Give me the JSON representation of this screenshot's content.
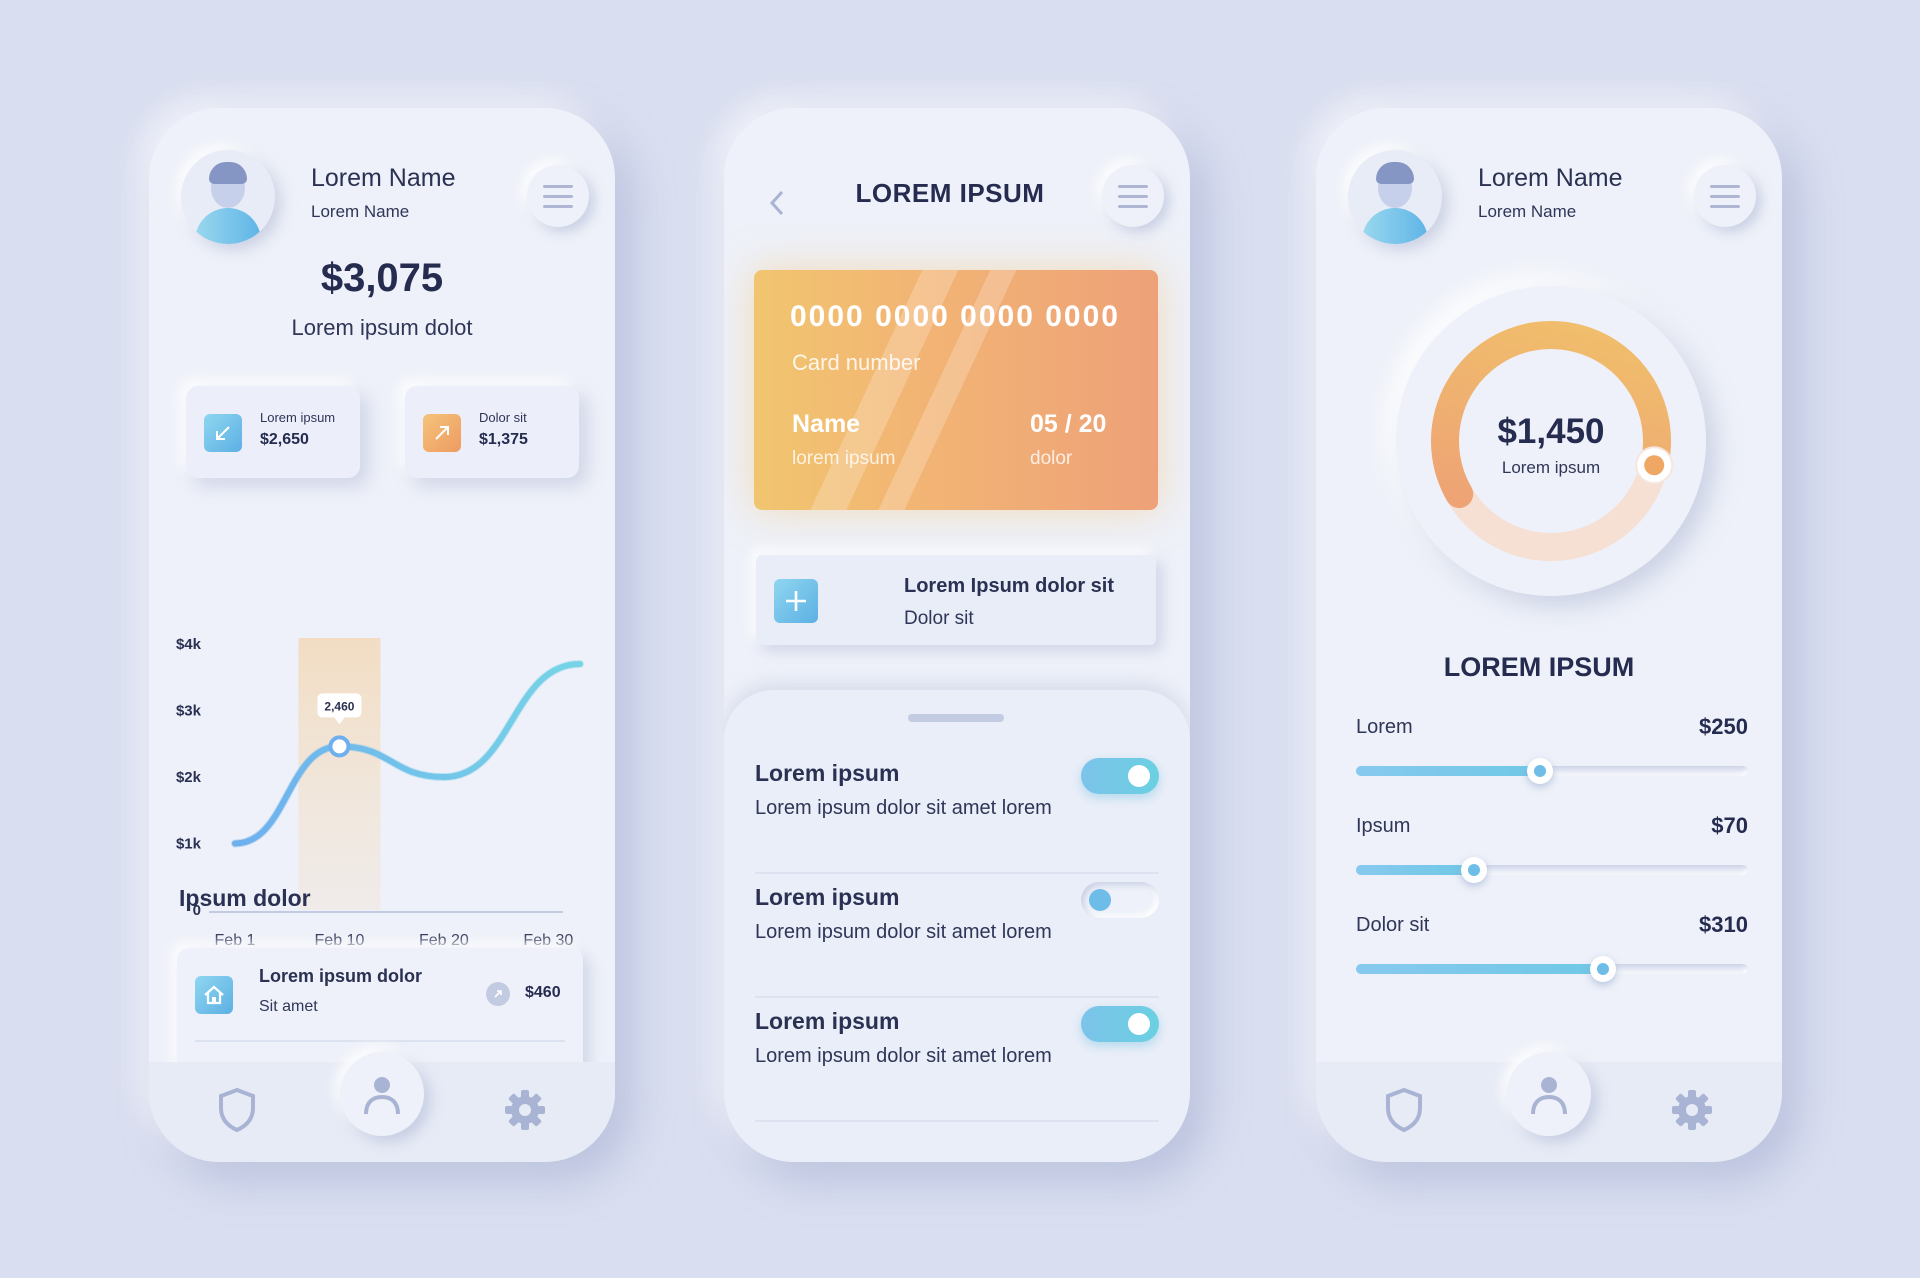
{
  "phone1": {
    "profile": {
      "name": "Lorem Name",
      "subname": "Lorem Name"
    },
    "balance": {
      "amount": "$3,075",
      "caption": "Lorem ipsum dolot"
    },
    "stats": [
      {
        "label": "Lorem ipsum",
        "value": "$2,650",
        "icon": "arrow-down-left-icon",
        "color": "#5fb8e6"
      },
      {
        "label": "Dolor sit",
        "value": "$1,375",
        "icon": "arrow-up-right-icon",
        "color": "#f1a85f"
      }
    ],
    "chart_data": {
      "type": "line",
      "x": [
        "Feb 1",
        "Feb 10",
        "Feb 20",
        "Feb 30"
      ],
      "y_ticks": [
        "0",
        "$1k",
        "$2k",
        "$3k",
        "$4k"
      ],
      "ylim": [
        0,
        4000
      ],
      "series": [
        {
          "points": [
            [
              0,
              1000
            ],
            [
              1,
              2460
            ],
            [
              2,
              2000
            ],
            [
              3,
              3700
            ]
          ]
        }
      ],
      "highlight": {
        "x_index": 1,
        "label": "2,460",
        "value": 2460
      }
    },
    "section_title": "Ipsum dolor",
    "transaction": {
      "title": "Lorem ipsum dolor",
      "sub": "Sit amet",
      "amount": "$460",
      "icon": "home-icon"
    },
    "tabbar": [
      "shield-icon",
      "user-icon",
      "gear-icon"
    ]
  },
  "phone2": {
    "title": "LOREM IPSUM",
    "card": {
      "number": "0000 0000 0000 0000",
      "number_label": "Card number",
      "name": "Name",
      "name_label": "lorem ipsum",
      "expiry": "05 / 20",
      "expiry_label": "dolor"
    },
    "add_item": {
      "title": "Lorem Ipsum dolor sit",
      "sub": "Dolor sit",
      "icon": "plus-icon"
    },
    "settings": [
      {
        "title": "Lorem ipsum",
        "sub": "Lorem ipsum dolor sit amet lorem",
        "enabled": true
      },
      {
        "title": "Lorem ipsum",
        "sub": "Lorem ipsum dolor sit amet lorem",
        "enabled": false
      },
      {
        "title": "Lorem ipsum",
        "sub": "Lorem ipsum dolor sit amet lorem",
        "enabled": true
      }
    ]
  },
  "phone3": {
    "profile": {
      "name": "Lorem Name",
      "subname": "Lorem Name"
    },
    "donut": {
      "amount": "$1,450",
      "label": "Lorem ipsum",
      "progress": 0.62
    },
    "title": "LOREM IPSUM",
    "sliders": [
      {
        "label": "Lorem",
        "value": "$250",
        "level": 0.47
      },
      {
        "label": "Ipsum",
        "value": "$70",
        "level": 0.3
      },
      {
        "label": "Dolor sit",
        "value": "$310",
        "level": 0.63
      }
    ],
    "tabbar": [
      "shield-icon",
      "user-icon",
      "gear-icon"
    ]
  },
  "colors": {
    "background": "#d9def0",
    "accent_blue": "#6dbde8",
    "accent_orange": "#f0a46f",
    "text_dark": "#252c4f"
  }
}
